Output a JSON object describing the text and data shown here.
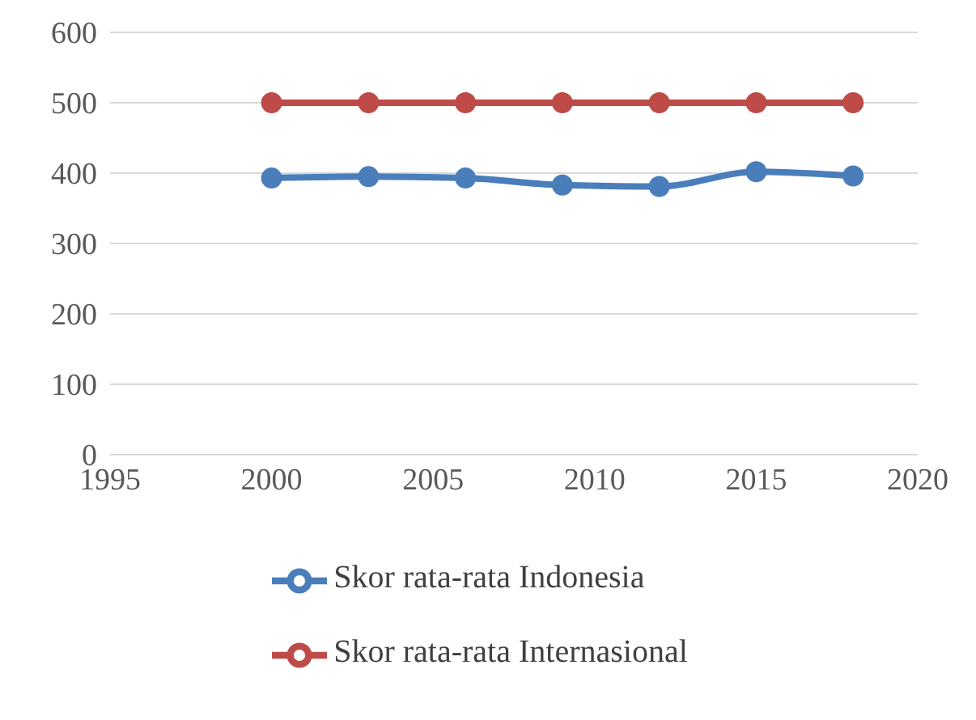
{
  "chart_data": {
    "type": "line",
    "x": [
      2000,
      2003,
      2006,
      2009,
      2012,
      2015,
      2018
    ],
    "series": [
      {
        "name": "Skor rata-rata Indonesia",
        "color": "#4a7ebb",
        "values": [
          393,
          395,
          393,
          383,
          381,
          402,
          396
        ]
      },
      {
        "name": "Skor rata-rata Internasional",
        "color": "#be4b48",
        "values": [
          500,
          500,
          500,
          500,
          500,
          500,
          500
        ]
      }
    ],
    "xlim": [
      1995,
      2020
    ],
    "xticks": [
      1995,
      2000,
      2005,
      2010,
      2015,
      2020
    ],
    "ylim": [
      0,
      600
    ],
    "yticks": [
      0,
      100,
      200,
      300,
      400,
      500,
      600
    ],
    "grid": "y",
    "legend": "bottom",
    "marker": "circle",
    "line_style": "solid"
  }
}
